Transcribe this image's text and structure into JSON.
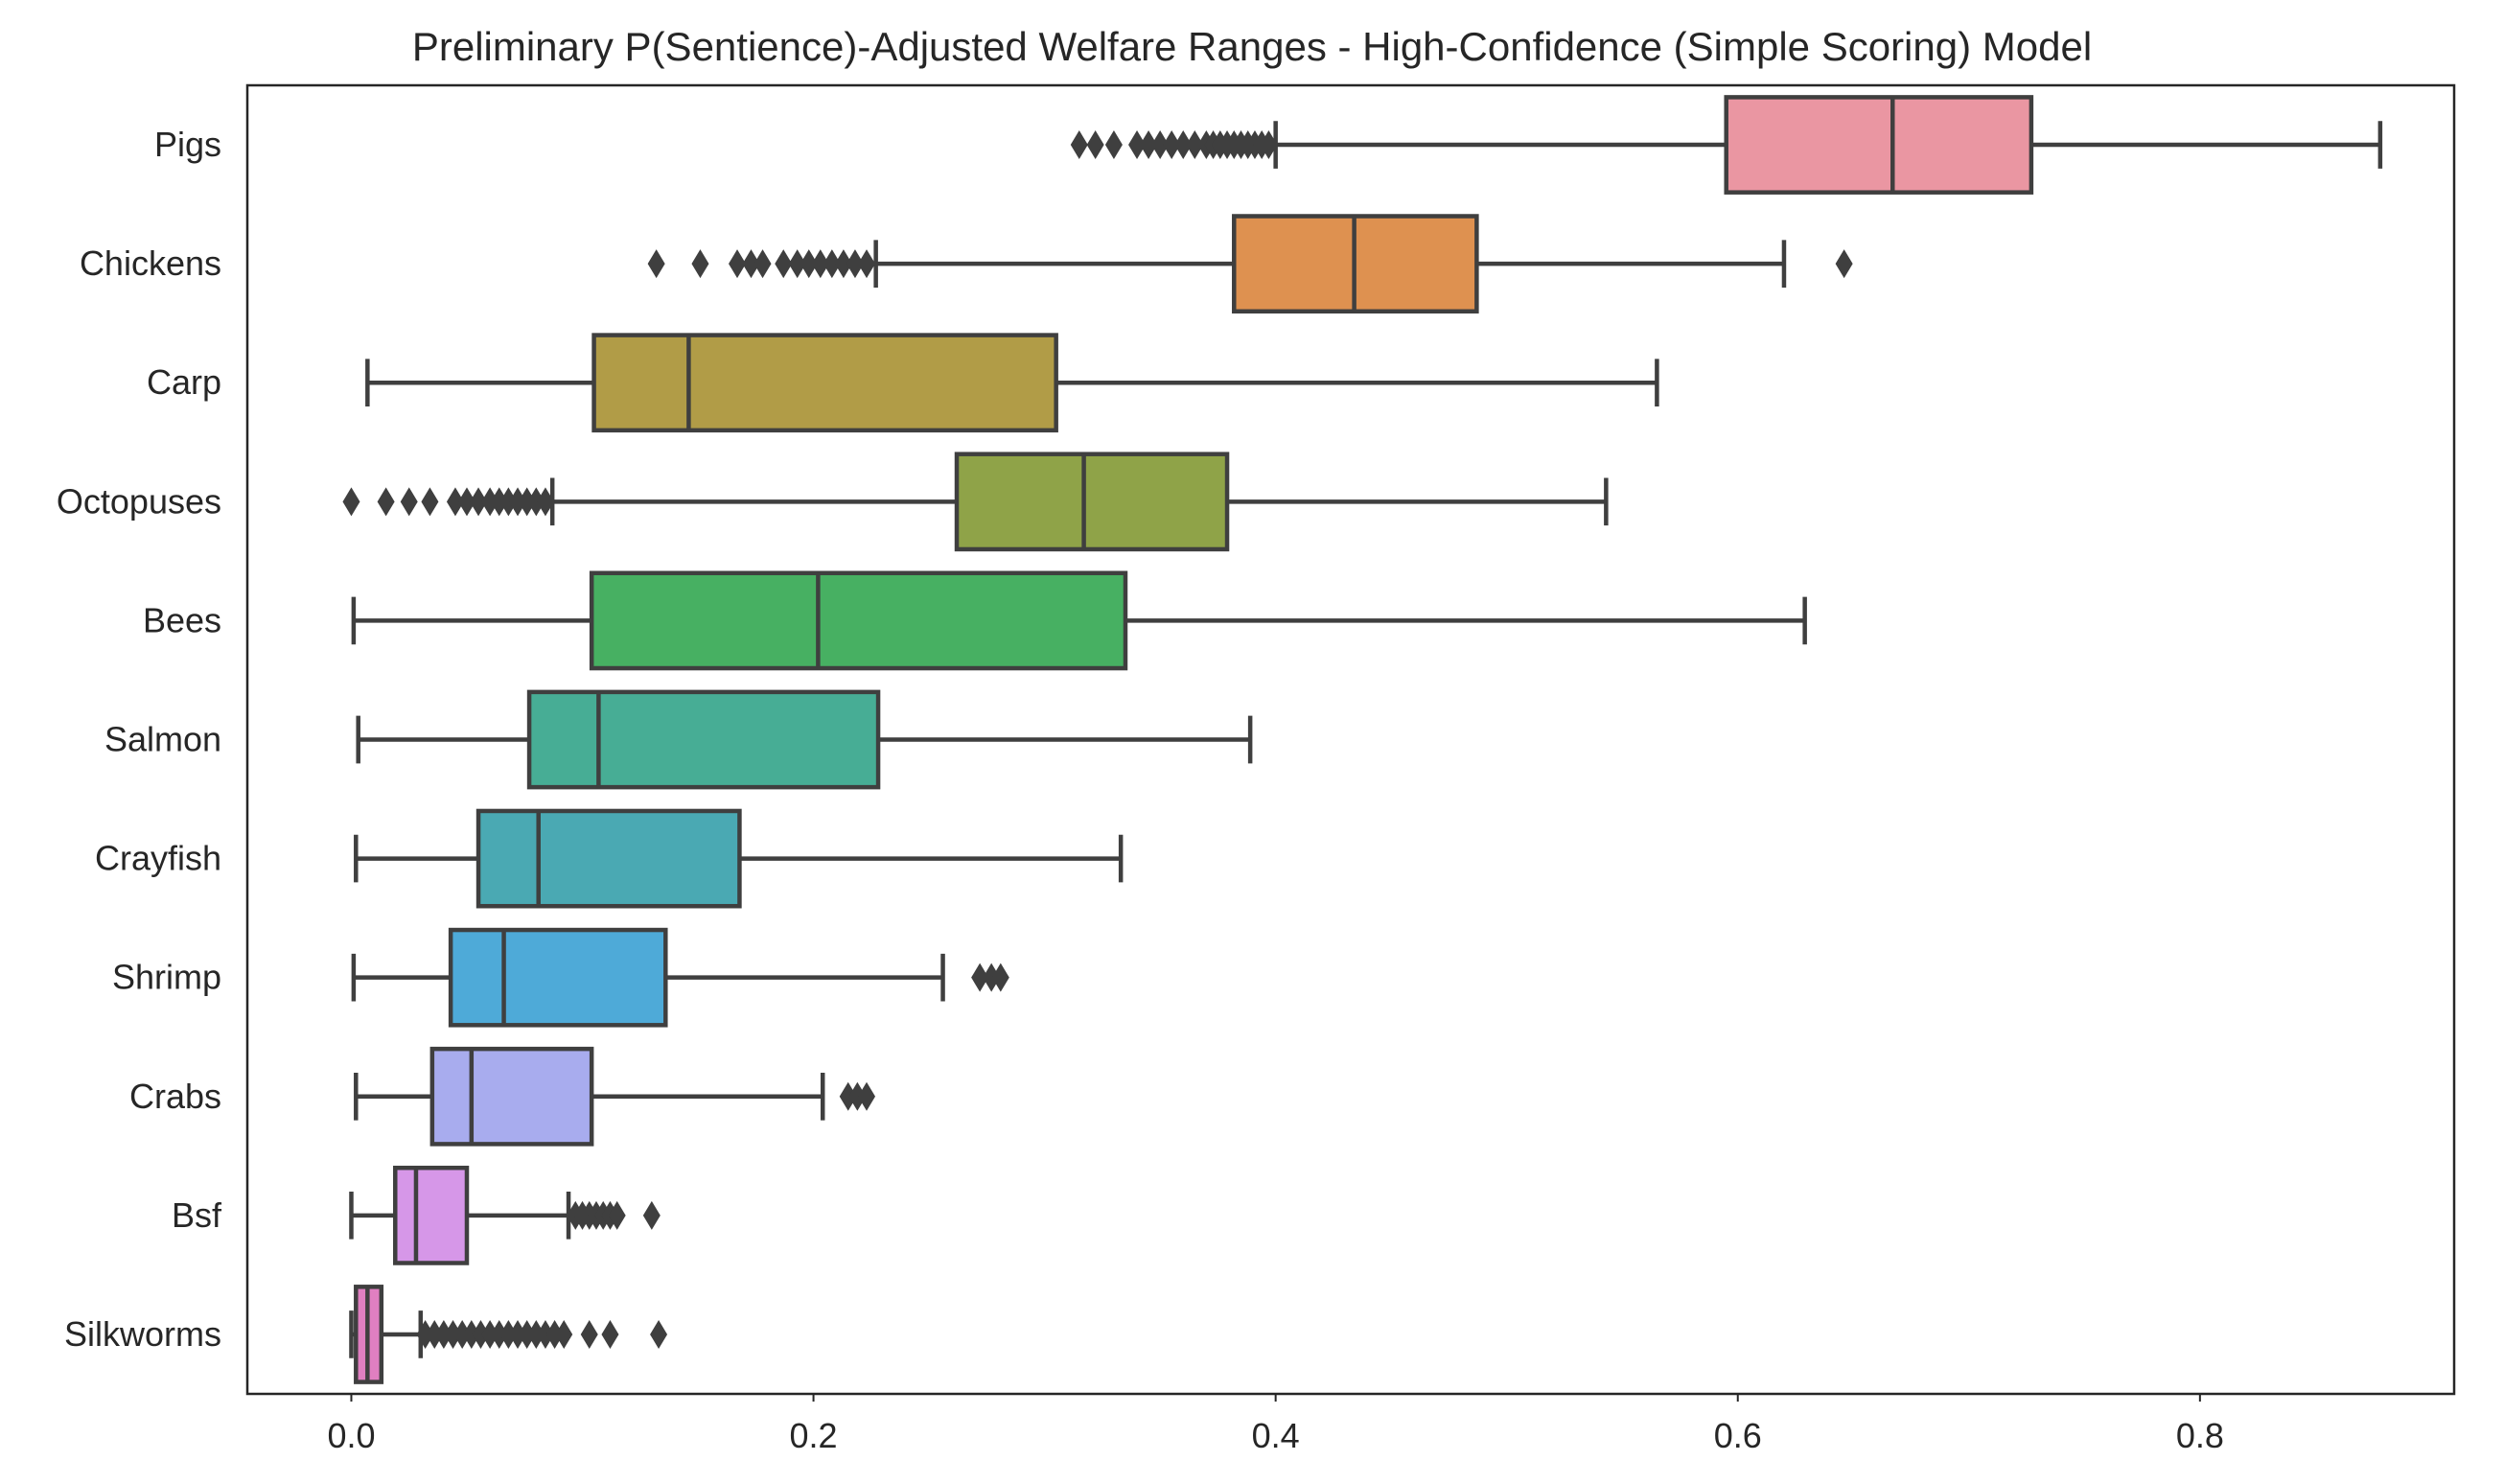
{
  "chart_data": {
    "type": "boxplot",
    "orientation": "horizontal",
    "title": "Preliminary P(Sentience)-Adjusted Welfare Ranges - High-Confidence (Simple Scoring) Model",
    "xlabel": "",
    "ylabel": "",
    "xlim": [
      -0.045,
      0.91
    ],
    "xticks": [
      0.0,
      0.2,
      0.4,
      0.6,
      0.8
    ],
    "xtick_labels": [
      "0.0",
      "0.2",
      "0.4",
      "0.6",
      "0.8"
    ],
    "grid": false,
    "legend": "none",
    "categories": [
      "Pigs",
      "Chickens",
      "Carp",
      "Octopuses",
      "Bees",
      "Salmon",
      "Crayfish",
      "Shrimp",
      "Crabs",
      "Bsf",
      "Silkworms"
    ],
    "boxes": [
      {
        "category": "Pigs",
        "color": "#ea96a2",
        "whisker_low": 0.4,
        "q1": 0.595,
        "median": 0.667,
        "q3": 0.727,
        "whisker_high": 0.878,
        "outliers": [
          0.315,
          0.322,
          0.33,
          0.34,
          0.345,
          0.35,
          0.355,
          0.36,
          0.365,
          0.37,
          0.373,
          0.376,
          0.379,
          0.382,
          0.385,
          0.388,
          0.391,
          0.394,
          0.397
        ]
      },
      {
        "category": "Chickens",
        "color": "#de9150",
        "whisker_low": 0.227,
        "q1": 0.382,
        "median": 0.434,
        "q3": 0.487,
        "whisker_high": 0.62,
        "outliers": [
          0.132,
          0.151,
          0.167,
          0.173,
          0.178,
          0.187,
          0.193,
          0.198,
          0.203,
          0.208,
          0.213,
          0.218,
          0.223,
          0.646
        ]
      },
      {
        "category": "Carp",
        "color": "#b19c47",
        "whisker_low": 0.007,
        "q1": 0.105,
        "median": 0.146,
        "q3": 0.305,
        "whisker_high": 0.565,
        "outliers": []
      },
      {
        "category": "Octopuses",
        "color": "#8fa348",
        "whisker_low": 0.087,
        "q1": 0.262,
        "median": 0.317,
        "q3": 0.379,
        "whisker_high": 0.543,
        "outliers": [
          0.0,
          0.015,
          0.025,
          0.034,
          0.045,
          0.05,
          0.055,
          0.06,
          0.064,
          0.068,
          0.072,
          0.076,
          0.08,
          0.084
        ]
      },
      {
        "category": "Bees",
        "color": "#47b062",
        "whisker_low": 0.001,
        "q1": 0.104,
        "median": 0.202,
        "q3": 0.335,
        "whisker_high": 0.629,
        "outliers": []
      },
      {
        "category": "Salmon",
        "color": "#47ad95",
        "whisker_low": 0.003,
        "q1": 0.077,
        "median": 0.107,
        "q3": 0.228,
        "whisker_high": 0.389,
        "outliers": []
      },
      {
        "category": "Crayfish",
        "color": "#4aa9b3",
        "whisker_low": 0.002,
        "q1": 0.055,
        "median": 0.081,
        "q3": 0.168,
        "whisker_high": 0.333,
        "outliers": []
      },
      {
        "category": "Shrimp",
        "color": "#4eaad8",
        "whisker_low": 0.001,
        "q1": 0.043,
        "median": 0.066,
        "q3": 0.136,
        "whisker_high": 0.256,
        "outliers": [
          0.272,
          0.277,
          0.281
        ]
      },
      {
        "category": "Crabs",
        "color": "#a8acee",
        "whisker_low": 0.002,
        "q1": 0.035,
        "median": 0.052,
        "q3": 0.104,
        "whisker_high": 0.204,
        "outliers": [
          0.215,
          0.219,
          0.223
        ]
      },
      {
        "category": "Bsf",
        "color": "#d697e8",
        "whisker_low": 0.0,
        "q1": 0.019,
        "median": 0.028,
        "q3": 0.05,
        "whisker_high": 0.094,
        "outliers": [
          0.097,
          0.1,
          0.103,
          0.106,
          0.109,
          0.112,
          0.115,
          0.13
        ]
      },
      {
        "category": "Silkworms",
        "color": "#e07fc1",
        "whisker_low": 0.0,
        "q1": 0.002,
        "median": 0.007,
        "q3": 0.013,
        "whisker_high": 0.03,
        "outliers": [
          0.032,
          0.036,
          0.04,
          0.044,
          0.048,
          0.052,
          0.056,
          0.06,
          0.064,
          0.068,
          0.072,
          0.076,
          0.08,
          0.084,
          0.088,
          0.092,
          0.103,
          0.112,
          0.133
        ]
      }
    ],
    "line_color": "#3f3f3f"
  }
}
